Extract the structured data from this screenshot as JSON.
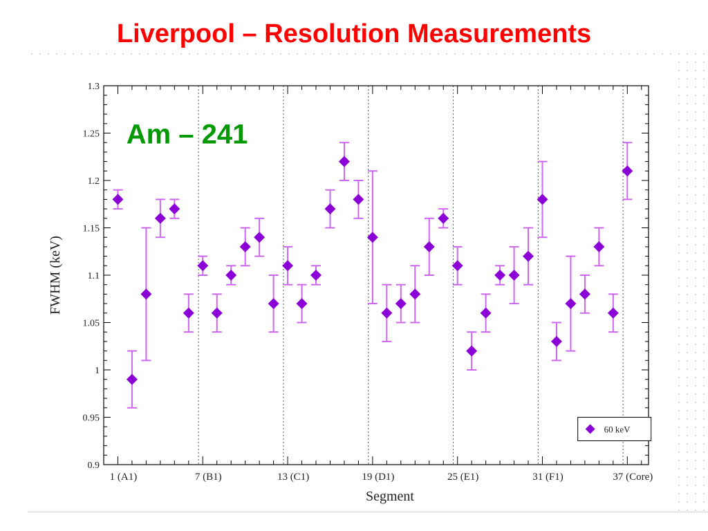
{
  "slide": {
    "title": "Liverpool – Resolution Measurements"
  },
  "colors": {
    "title": "#ff0000",
    "annotation": "#009900",
    "series": "#8b00d6",
    "errorbar": "#cc66ee"
  },
  "chart_data": {
    "type": "scatter",
    "xlabel": "Segment",
    "ylabel": "FWHM (keV)",
    "ylim": [
      0.9,
      1.3
    ],
    "xlim": [
      0,
      38.5
    ],
    "yticks": [
      "0.9",
      "0.95",
      "1",
      "1.05",
      "1.1",
      "1.15",
      "1.2",
      "1.25",
      "1.3"
    ],
    "xticks": [
      {
        "x": 1,
        "label": "1 (A1)"
      },
      {
        "x": 7,
        "label": "7 (B1)"
      },
      {
        "x": 13,
        "label": "13 (C1)"
      },
      {
        "x": 19,
        "label": "19 (D1)"
      },
      {
        "x": 25,
        "label": "25 (E1)"
      },
      {
        "x": 31,
        "label": "31 (F1)"
      },
      {
        "x": 37,
        "label": "37 (Core)"
      }
    ],
    "separators": [
      6.7,
      12.7,
      18.7,
      24.7,
      30.7,
      36.7
    ],
    "annotation": "Am – 241",
    "legend": {
      "position": "bottom-right",
      "label": "60 keV"
    },
    "grid": false,
    "series": [
      {
        "name": "60 keV",
        "marker": "diamond",
        "x": [
          1,
          2,
          3,
          4,
          5,
          6,
          7,
          8,
          9,
          10,
          11,
          12,
          13,
          14,
          15,
          16,
          17,
          18,
          19,
          20,
          21,
          22,
          23,
          24,
          25,
          26,
          27,
          28,
          29,
          30,
          31,
          32,
          33,
          34,
          35,
          36,
          37
        ],
        "y": [
          1.18,
          0.99,
          1.08,
          1.16,
          1.17,
          1.06,
          1.11,
          1.06,
          1.1,
          1.13,
          1.14,
          1.07,
          1.11,
          1.07,
          1.1,
          1.17,
          1.22,
          1.18,
          1.14,
          1.06,
          1.07,
          1.08,
          1.13,
          1.16,
          1.11,
          1.02,
          1.06,
          1.1,
          1.1,
          1.12,
          1.18,
          1.03,
          1.07,
          1.08,
          1.13,
          1.06,
          1.21
        ],
        "err_low": [
          1.17,
          0.96,
          1.01,
          1.14,
          1.16,
          1.04,
          1.1,
          1.04,
          1.09,
          1.11,
          1.12,
          1.04,
          1.09,
          1.05,
          1.09,
          1.15,
          1.2,
          1.16,
          1.07,
          1.03,
          1.05,
          1.05,
          1.1,
          1.15,
          1.09,
          1.0,
          1.04,
          1.09,
          1.07,
          1.09,
          1.14,
          1.01,
          1.02,
          1.06,
          1.11,
          1.04,
          1.18
        ],
        "err_high": [
          1.19,
          1.02,
          1.15,
          1.18,
          1.18,
          1.08,
          1.12,
          1.08,
          1.11,
          1.15,
          1.16,
          1.1,
          1.13,
          1.09,
          1.11,
          1.19,
          1.24,
          1.2,
          1.21,
          1.09,
          1.09,
          1.11,
          1.16,
          1.17,
          1.13,
          1.04,
          1.08,
          1.11,
          1.13,
          1.15,
          1.22,
          1.05,
          1.12,
          1.1,
          1.15,
          1.08,
          1.24
        ]
      }
    ]
  }
}
